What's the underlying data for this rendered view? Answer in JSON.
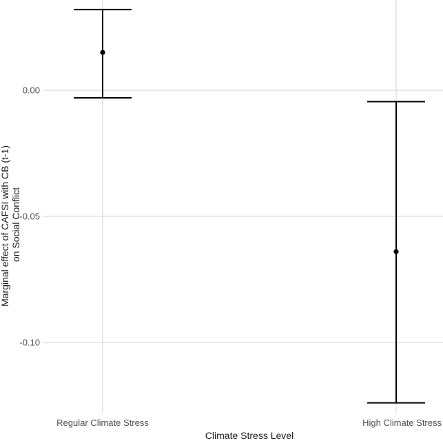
{
  "chart_data": {
    "type": "scatter",
    "subtype": "point-with-error-bars",
    "title": "",
    "xlabel": "Climate Stress Level",
    "ylabel_lines": [
      "Marginal effect of CAFSI with CB (t-1)",
      "on Social Conflict"
    ],
    "categories": [
      "Regular Climate Stress",
      "High Climate Stress"
    ],
    "points": [
      {
        "category": "Regular Climate Stress",
        "estimate": 0.015,
        "lower": -0.003,
        "upper": 0.032
      },
      {
        "category": "High Climate Stress",
        "estimate": -0.064,
        "lower": -0.124,
        "upper": -0.0045
      }
    ],
    "y_ticks": [
      0.0,
      -0.05,
      -0.1
    ],
    "y_tick_labels": [
      "0.00",
      "-0.05",
      "-0.10"
    ],
    "ylim": [
      -0.1282,
      0.0358
    ],
    "grid": true,
    "legend": "none",
    "colors": {
      "mark": "#000000",
      "grid": "#d9d9d9"
    }
  }
}
